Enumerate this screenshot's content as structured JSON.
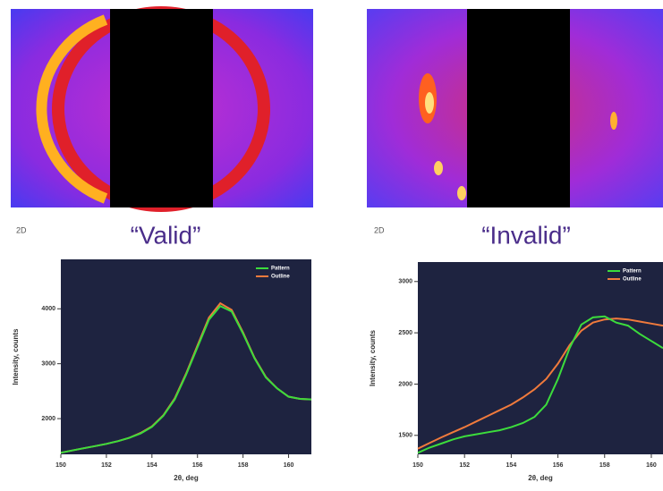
{
  "chart_data": [
    {
      "type": "line",
      "title": "“Valid”",
      "annotations": [
        "2D"
      ],
      "xlabel": "2θ, deg",
      "ylabel": "Intensity, counts",
      "x": [
        150,
        150.5,
        151,
        151.5,
        152,
        152.5,
        153,
        153.5,
        154,
        154.5,
        155,
        155.5,
        156,
        156.5,
        157,
        157.5,
        158,
        158.5,
        159,
        159.5,
        160,
        160.5,
        161
      ],
      "series": [
        {
          "name": "Pattern",
          "color": "#3cdc3c",
          "values": [
            1380,
            1420,
            1460,
            1500,
            1540,
            1590,
            1650,
            1730,
            1850,
            2050,
            2350,
            2800,
            3300,
            3800,
            4050,
            3950,
            3550,
            3100,
            2750,
            2550,
            2400,
            2360,
            2350
          ]
        },
        {
          "name": "Outline",
          "color": "#f07a3c",
          "values": [
            1380,
            1420,
            1460,
            1500,
            1540,
            1590,
            1650,
            1740,
            1860,
            2060,
            2370,
            2820,
            3330,
            3840,
            4100,
            3980,
            3570,
            3110,
            2760,
            2550,
            2400,
            2360,
            2350
          ]
        }
      ],
      "xlim": [
        150,
        161
      ],
      "ylim": [
        1350,
        4900
      ],
      "xticks": [
        150,
        152,
        154,
        156,
        158,
        160
      ],
      "yticks": [
        2000,
        3000,
        4000
      ],
      "legend": "top-right"
    },
    {
      "type": "line",
      "title": "“Invalid”",
      "annotations": [
        "2D"
      ],
      "xlabel": "2θ, deg",
      "ylabel": "Intensity, counts",
      "x": [
        150,
        150.5,
        151,
        151.5,
        152,
        152.5,
        153,
        153.5,
        154,
        154.5,
        155,
        155.5,
        156,
        156.5,
        157,
        157.5,
        158,
        158.5,
        159,
        159.5,
        160,
        160.5
      ],
      "series": [
        {
          "name": "Pattern",
          "color": "#3cdc3c",
          "values": [
            1330,
            1380,
            1420,
            1460,
            1490,
            1510,
            1530,
            1550,
            1580,
            1620,
            1680,
            1800,
            2050,
            2350,
            2580,
            2650,
            2660,
            2600,
            2570,
            2490,
            2420,
            2350
          ]
        },
        {
          "name": "Outline",
          "color": "#f07a3c",
          "values": [
            1370,
            1425,
            1480,
            1530,
            1580,
            1635,
            1690,
            1745,
            1800,
            1870,
            1950,
            2050,
            2200,
            2380,
            2520,
            2600,
            2630,
            2640,
            2630,
            2610,
            2590,
            2570
          ]
        }
      ],
      "xlim": [
        150,
        160.5
      ],
      "ylim": [
        1315,
        3190
      ],
      "xticks": [
        150,
        152,
        154,
        156,
        158,
        160
      ],
      "yticks": [
        1500,
        2000,
        2500,
        3000
      ],
      "legend": "top-right"
    }
  ]
}
